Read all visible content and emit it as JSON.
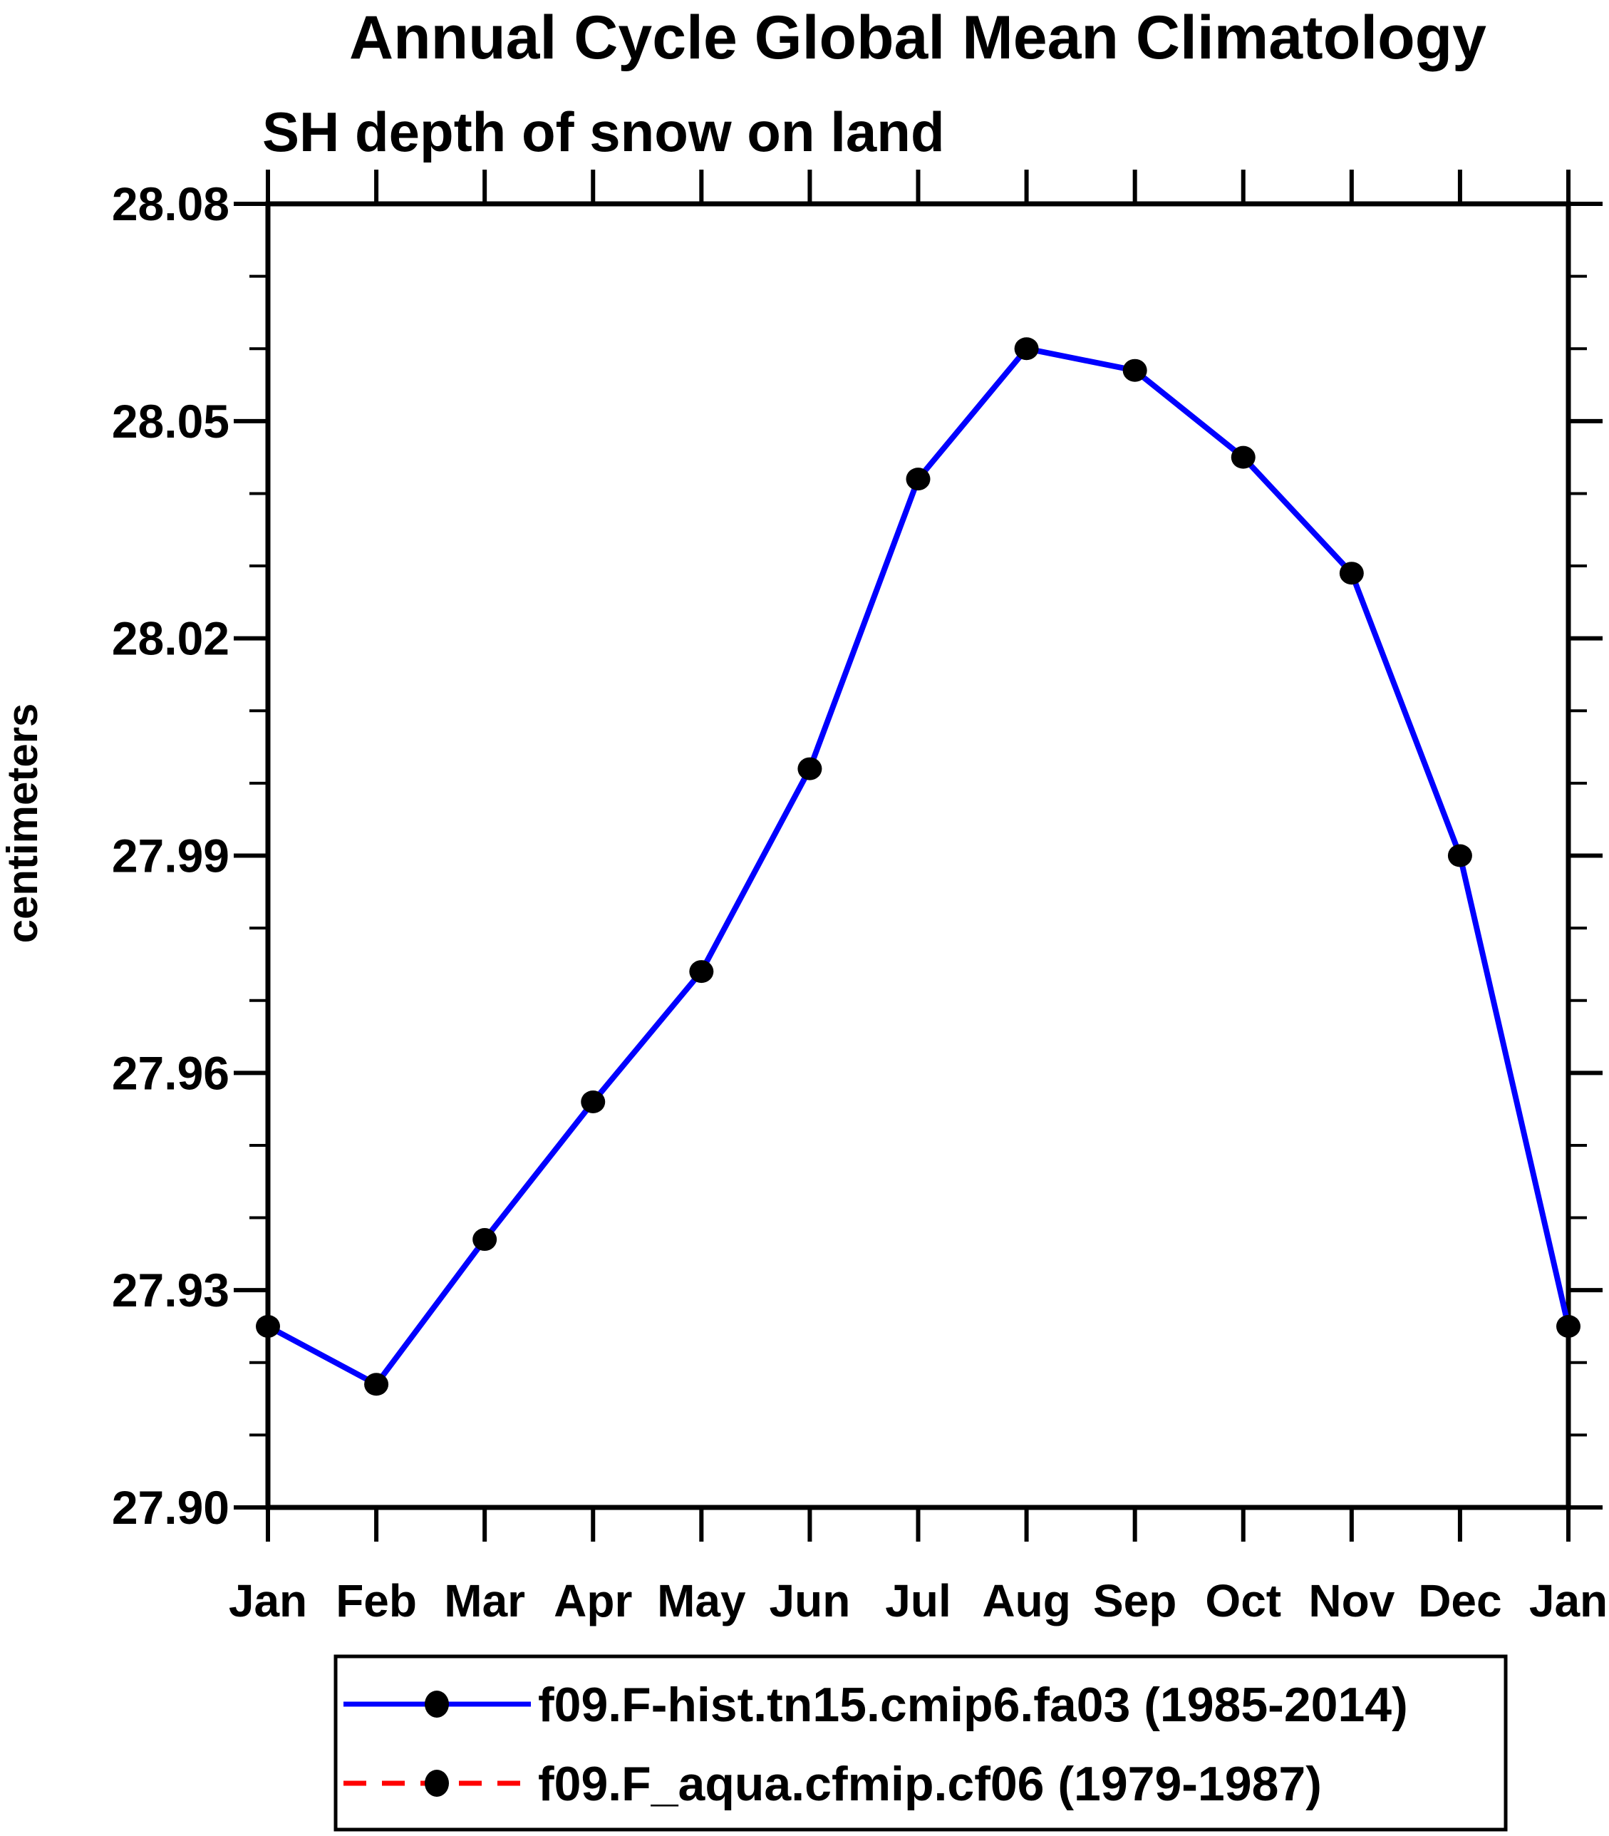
{
  "page": {
    "background": "#FFFFFF"
  },
  "colors": {
    "axis": "#000000",
    "text": "#000000",
    "series1": "#0000FF",
    "series2": "#FF0000",
    "marker": "#000000"
  },
  "chart_data": {
    "type": "line",
    "title": "Annual Cycle Global Mean Climatology",
    "subtitle": "SH depth of snow on land",
    "ylabel": "centimeters",
    "xlabel": "",
    "x_categories": [
      "Jan",
      "Feb",
      "Mar",
      "Apr",
      "May",
      "Jun",
      "Jul",
      "Aug",
      "Sep",
      "Oct",
      "Nov",
      "Dec",
      "Jan"
    ],
    "ylim": [
      27.9,
      28.08
    ],
    "y_tick_labels": [
      "28.08",
      "28.05",
      "28.02",
      "27.99",
      "27.96",
      "27.93",
      "27.90"
    ],
    "y_major_step": 0.03,
    "y_minor_step": 0.01,
    "grid": false,
    "legend_position": "bottom",
    "series": [
      {
        "name": "f09.F-hist.tn15.cmip6.fa03 (1985-2014)",
        "color": "#0000FF",
        "style": "solid",
        "marker": "filled-circle",
        "marker_color": "#000000",
        "visible_in_plot": true,
        "values": [
          27.925,
          27.917,
          27.937,
          27.956,
          27.974,
          28.002,
          28.042,
          28.06,
          28.057,
          28.045,
          28.029,
          27.99,
          27.925
        ]
      },
      {
        "name": "f09.F_aqua.cfmip.cf06 (1979-1987)",
        "color": "#FF0000",
        "style": "dashed",
        "marker": "filled-circle",
        "marker_color": "#000000",
        "visible_in_plot": false,
        "values": []
      }
    ]
  }
}
